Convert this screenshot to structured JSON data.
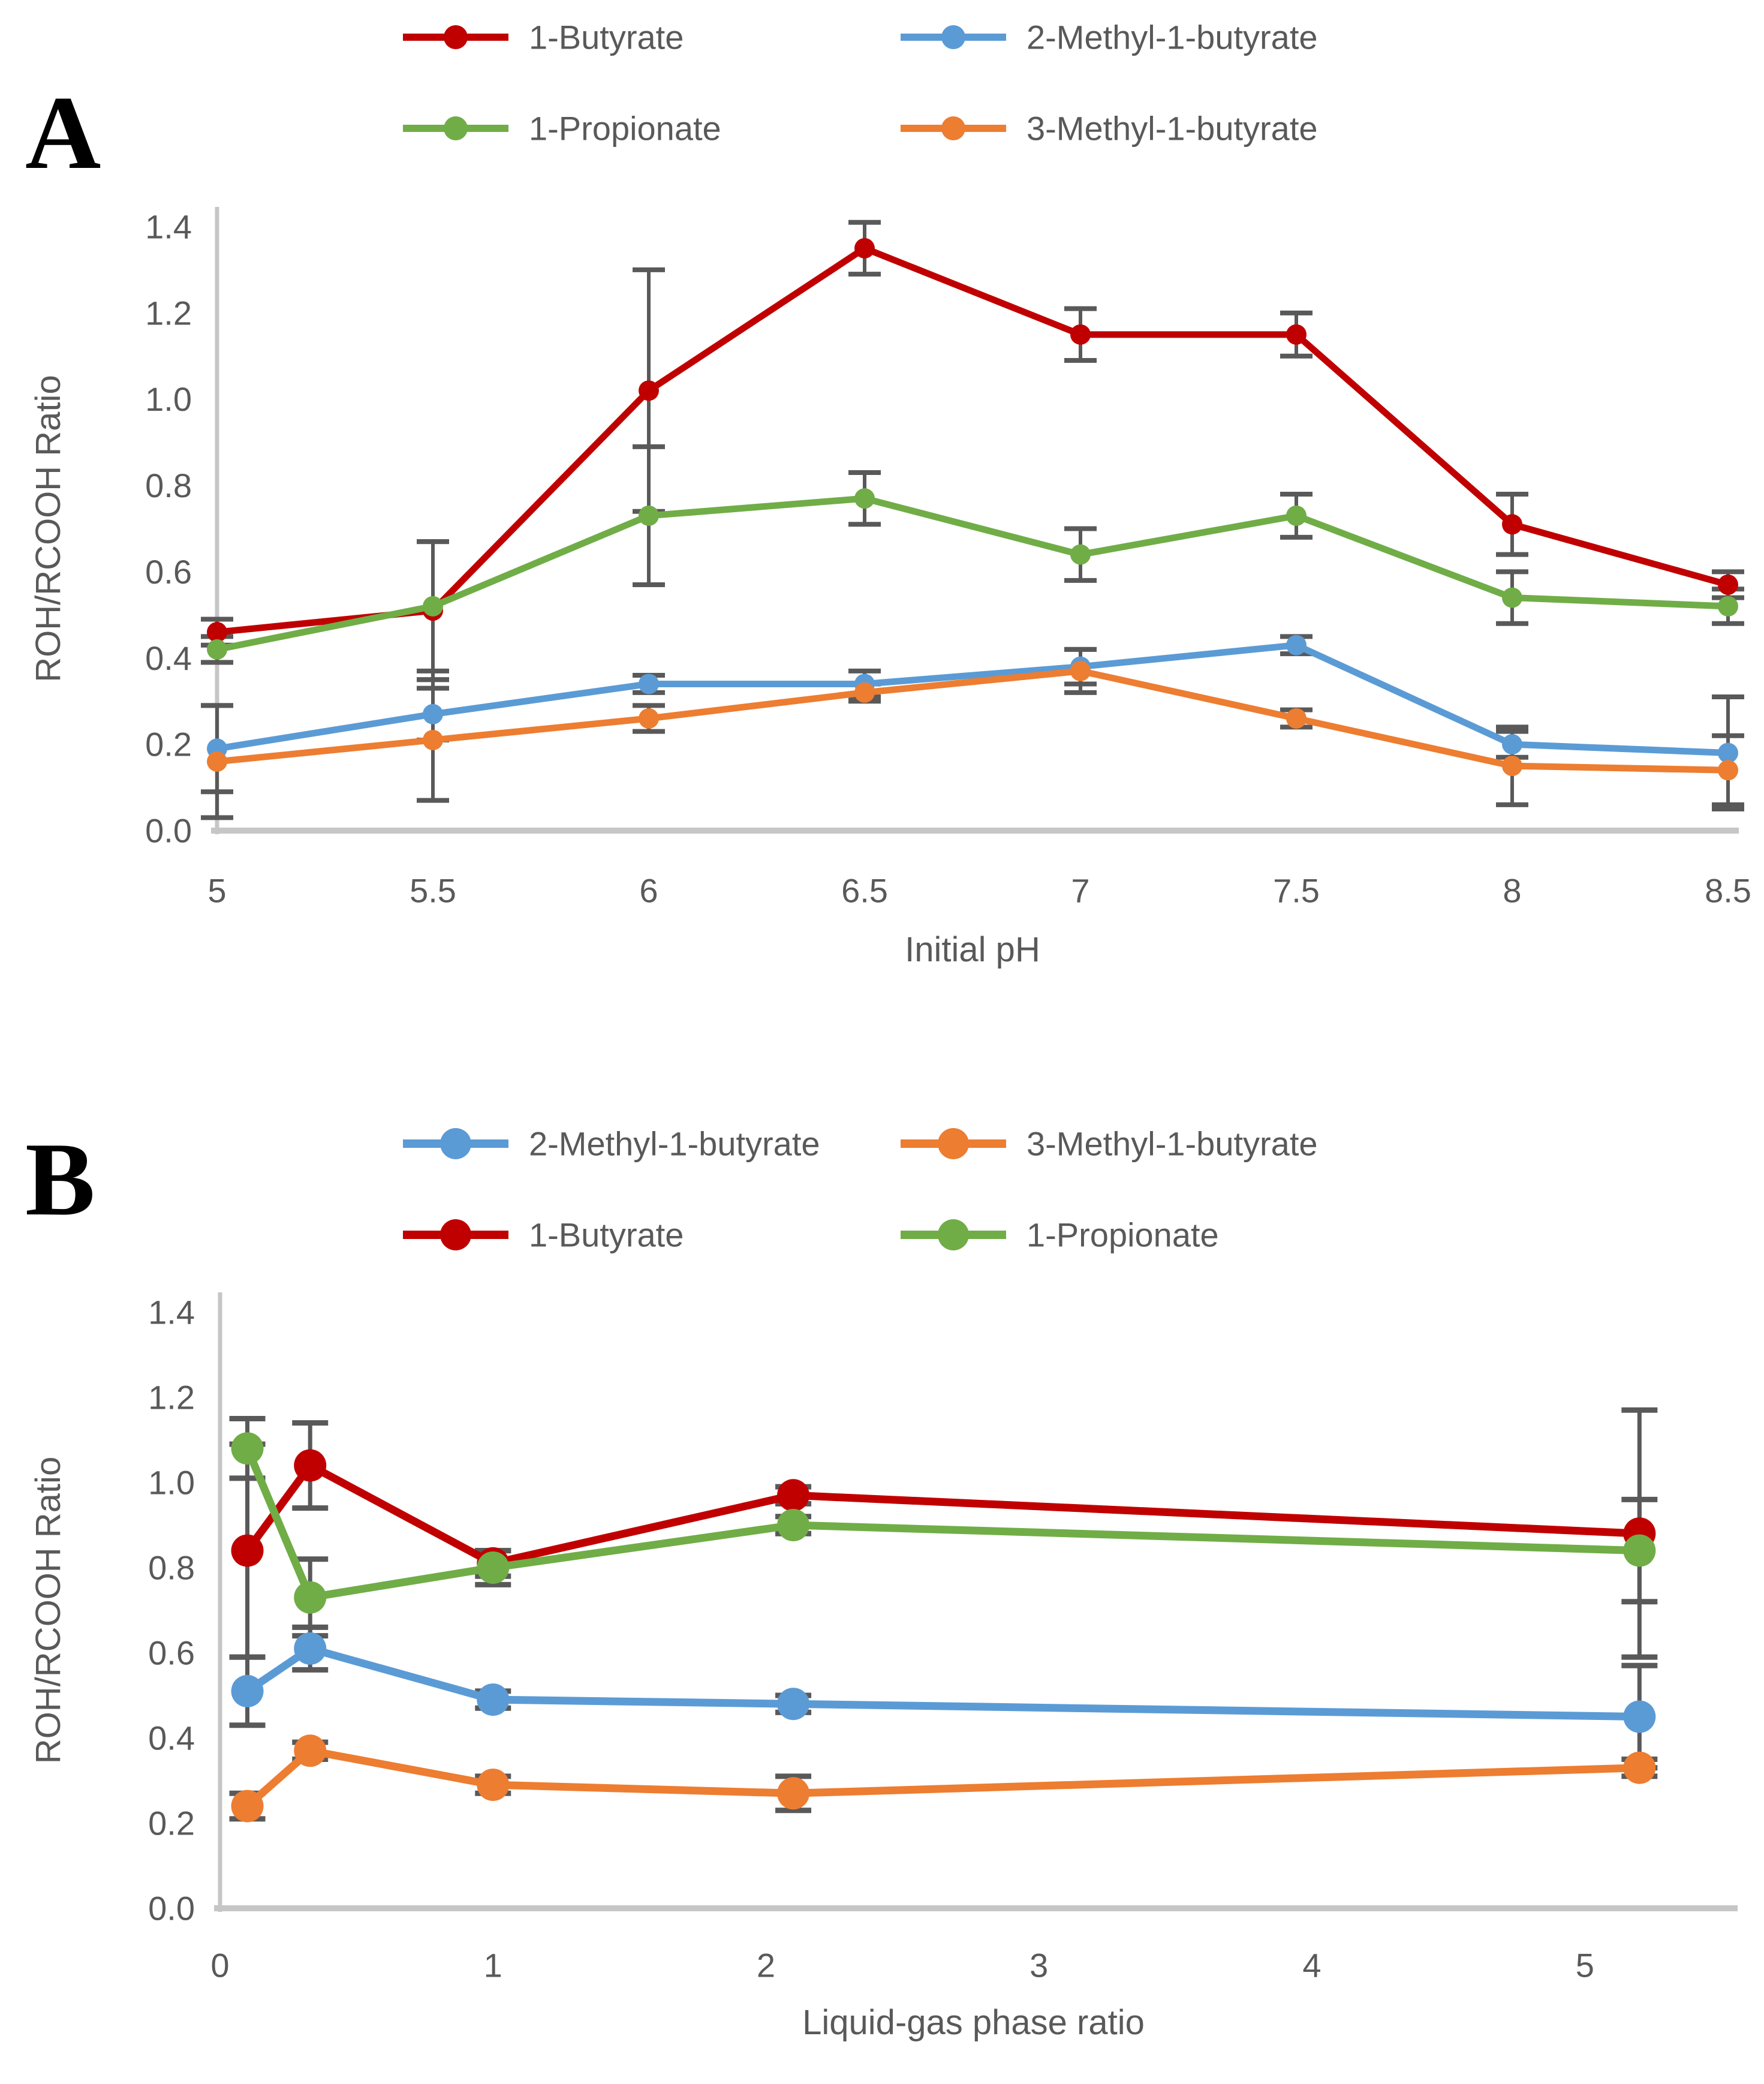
{
  "page": {
    "background": "#FFFFFF"
  },
  "colors": {
    "butyrate_red": "#C00000",
    "methyl2_blue": "#5B9BD5",
    "propionate_green": "#70AD47",
    "methyl3_orange": "#ED7D31",
    "tick_text_gray": "#595959",
    "axis_line_gray": "#C6C6C6",
    "error_bar_gray": "#595959"
  },
  "chart_data": [
    {
      "panel_label": "A",
      "type": "line",
      "title": "",
      "xlabel": "Initial pH",
      "ylabel": "ROH/RCOOH Ratio",
      "grid": false,
      "legend_position": "top-two-columns",
      "xlim": [
        5,
        8.5
      ],
      "ylim": [
        0,
        1.4
      ],
      "x": [
        5,
        5.5,
        6,
        6.5,
        7,
        7.5,
        8,
        8.5
      ],
      "xtick_values": [
        5,
        5.5,
        6,
        6.5,
        7,
        7.5,
        8,
        8.5
      ],
      "xtick_labels": [
        "5",
        "5.5",
        "6",
        "6.5",
        "7",
        "7.5",
        "8",
        "8.5"
      ],
      "ytick_values": [
        0,
        0.2,
        0.4,
        0.6,
        0.8,
        1.0,
        1.2,
        1.4
      ],
      "ytick_labels": [
        "0.0",
        "0.2",
        "0.4",
        "0.6",
        "0.8",
        "1.0",
        "1.2",
        "1.4"
      ],
      "legend_order": [
        "1-Butyrate",
        "2-Methyl-1-butyrate",
        "1-Propionate",
        "3-Methyl-1-butyrate"
      ],
      "series": [
        {
          "name": "1-Butyrate",
          "color": "#C00000",
          "values": [
            0.46,
            0.51,
            1.02,
            1.35,
            1.15,
            1.15,
            0.71,
            0.57
          ],
          "errors": [
            0.03,
            0.16,
            0.28,
            0.06,
            0.06,
            0.05,
            0.07,
            0.03
          ]
        },
        {
          "name": "2-Methyl-1-butyrate",
          "color": "#5B9BD5",
          "values": [
            0.19,
            0.27,
            0.34,
            0.34,
            0.38,
            0.43,
            0.2,
            0.18
          ],
          "errors": [
            0.1,
            0.06,
            0.02,
            0.03,
            0.04,
            0.02,
            0.03,
            0.13
          ]
        },
        {
          "name": "1-Propionate",
          "color": "#70AD47",
          "values": [
            0.42,
            0.52,
            0.73,
            0.77,
            0.64,
            0.73,
            0.54,
            0.52
          ],
          "errors": [
            0.03,
            0.15,
            0.16,
            0.06,
            0.06,
            0.05,
            0.06,
            0.04
          ]
        },
        {
          "name": "3-Methyl-1-butyrate",
          "color": "#ED7D31",
          "values": [
            0.16,
            0.21,
            0.26,
            0.32,
            0.37,
            0.26,
            0.15,
            0.14
          ],
          "errors": [
            0.13,
            0.14,
            0.03,
            0.02,
            0.05,
            0.02,
            0.09,
            0.08
          ]
        }
      ]
    },
    {
      "panel_label": "B",
      "type": "line",
      "title": "",
      "xlabel": "Liquid-gas phase ratio",
      "ylabel": "ROH/RCOOH Ratio",
      "grid": false,
      "legend_position": "top-two-columns",
      "xlim": [
        0,
        5.52
      ],
      "ylim": [
        0,
        1.4
      ],
      "x": [
        0.1,
        0.33,
        1.0,
        2.1,
        5.2
      ],
      "xtick_values": [
        0,
        1,
        2,
        3,
        4,
        5
      ],
      "xtick_labels": [
        "0",
        "1",
        "2",
        "3",
        "4",
        "5"
      ],
      "ytick_values": [
        0,
        0.2,
        0.4,
        0.6,
        0.8,
        1.0,
        1.2,
        1.4
      ],
      "ytick_labels": [
        "0.0",
        "0.2",
        "0.4",
        "0.6",
        "0.8",
        "1.0",
        "1.2",
        "1.4"
      ],
      "legend_order": [
        "2-Methyl-1-butyrate",
        "3-Methyl-1-butyrate",
        "1-Butyrate",
        "1-Propionate"
      ],
      "series": [
        {
          "name": "2-Methyl-1-butyrate",
          "color": "#5B9BD5",
          "values": [
            0.51,
            0.61,
            0.49,
            0.48,
            0.45
          ],
          "errors": [
            0.08,
            0.05,
            0.02,
            0.02,
            0.12
          ]
        },
        {
          "name": "3-Methyl-1-butyrate",
          "color": "#ED7D31",
          "values": [
            0.24,
            0.37,
            0.29,
            0.27,
            0.33
          ],
          "errors": [
            0.03,
            0.02,
            0.02,
            0.04,
            0.02
          ]
        },
        {
          "name": "1-Butyrate",
          "color": "#C00000",
          "values": [
            0.84,
            1.04,
            0.81,
            0.97,
            0.88
          ],
          "errors": [
            0.25,
            0.1,
            0.03,
            0.02,
            0.29
          ]
        },
        {
          "name": "1-Propionate",
          "color": "#70AD47",
          "values": [
            1.08,
            0.73,
            0.8,
            0.9,
            0.84
          ],
          "errors": [
            0.07,
            0.09,
            0.04,
            0.02,
            0.12
          ]
        }
      ]
    }
  ]
}
